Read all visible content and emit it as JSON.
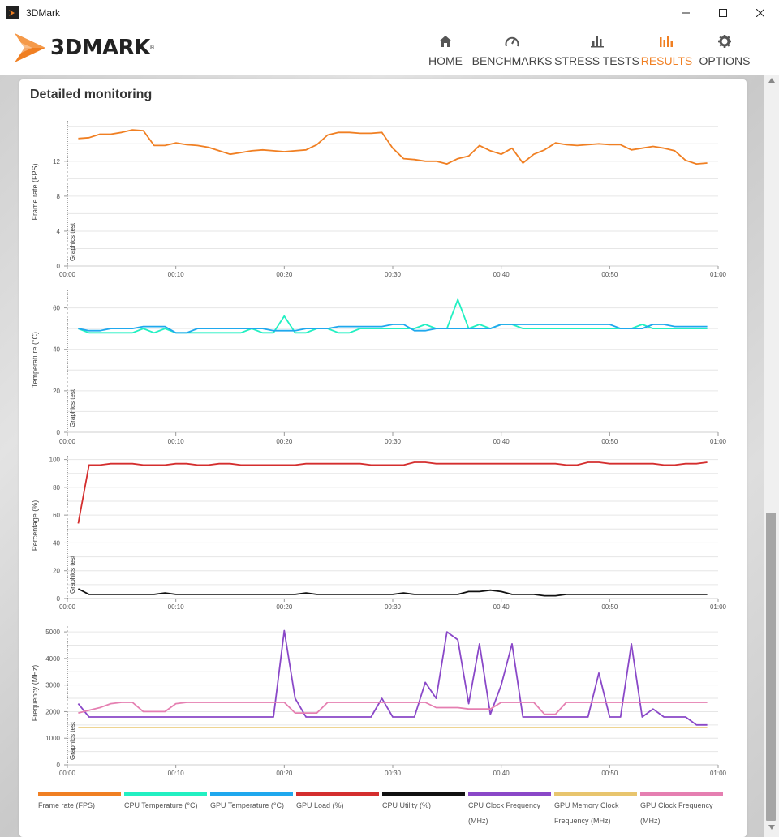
{
  "window": {
    "title": "3DMark"
  },
  "logo": {
    "text": "3DMARK",
    "reg": "®"
  },
  "nav": [
    {
      "id": "home",
      "label": "HOME",
      "icon": "home-icon",
      "active": false
    },
    {
      "id": "benchmarks",
      "label": "BENCHMARKS",
      "icon": "speedometer-icon",
      "active": false
    },
    {
      "id": "stress",
      "label": "STRESS TESTS",
      "icon": "bar-chart-icon",
      "active": false
    },
    {
      "id": "results",
      "label": "RESULTS",
      "icon": "results-chart-icon",
      "active": true
    },
    {
      "id": "options",
      "label": "OPTIONS",
      "icon": "gear-icon",
      "active": false
    }
  ],
  "colors": {
    "accent": "#f07f22"
  },
  "card": {
    "title": "Detailed monitoring"
  },
  "marker_label": "Graphics test",
  "chart_data": [
    {
      "type": "line",
      "ylabel": "Frame rate (FPS)",
      "ylim": [
        0,
        17
      ],
      "yticks": [
        0,
        4,
        8,
        12
      ],
      "ygrid": [
        2,
        4,
        6,
        8,
        10,
        12,
        14,
        16
      ],
      "xlim": [
        0,
        60
      ],
      "xticks": [
        "00:00",
        "00:10",
        "00:20",
        "00:30",
        "00:40",
        "00:50",
        "01:00"
      ],
      "series": [
        {
          "name": "Frame rate (FPS)",
          "color": "#f07f22",
          "x": [
            1,
            2,
            3,
            4,
            5,
            6,
            7,
            8,
            9,
            10,
            11,
            12,
            13,
            14,
            15,
            16,
            17,
            18,
            19,
            20,
            21,
            22,
            23,
            24,
            25,
            26,
            27,
            28,
            29,
            30,
            31,
            32,
            33,
            34,
            35,
            36,
            37,
            38,
            39,
            40,
            41,
            42,
            43,
            44,
            45,
            46,
            47,
            48,
            49,
            50,
            51,
            52,
            53,
            54,
            55,
            56,
            57,
            58,
            59
          ],
          "y": [
            14.6,
            14.7,
            15.1,
            15.1,
            15.3,
            15.6,
            15.5,
            13.8,
            13.8,
            14.1,
            13.9,
            13.8,
            13.6,
            13.2,
            12.8,
            13.0,
            13.2,
            13.3,
            13.2,
            13.1,
            13.2,
            13.3,
            13.9,
            15.0,
            15.3,
            15.3,
            15.2,
            15.2,
            15.3,
            13.5,
            12.3,
            12.2,
            12.0,
            12.0,
            11.7,
            12.3,
            12.6,
            13.8,
            13.2,
            12.8,
            13.5,
            11.8,
            12.8,
            13.3,
            14.1,
            13.9,
            13.8,
            13.9,
            14.0,
            13.9,
            13.9,
            13.3,
            13.5,
            13.7,
            13.5,
            13.2,
            12.1,
            11.7,
            11.8
          ]
        }
      ]
    },
    {
      "type": "line",
      "ylabel": "Temperature (°C)",
      "ylim": [
        0,
        70
      ],
      "yticks": [
        0,
        20,
        40,
        60
      ],
      "ygrid": [
        10,
        20,
        30,
        40,
        50,
        60
      ],
      "xlim": [
        0,
        60
      ],
      "xticks": [
        "00:00",
        "00:10",
        "00:20",
        "00:30",
        "00:40",
        "00:50",
        "01:00"
      ],
      "series": [
        {
          "name": "CPU Temperature (°C)",
          "color": "#22f0c2",
          "x": [
            1,
            2,
            3,
            4,
            5,
            6,
            7,
            8,
            9,
            10,
            11,
            12,
            13,
            14,
            15,
            16,
            17,
            18,
            19,
            20,
            21,
            22,
            23,
            24,
            25,
            26,
            27,
            28,
            29,
            30,
            31,
            32,
            33,
            34,
            35,
            36,
            37,
            38,
            39,
            40,
            41,
            42,
            43,
            44,
            45,
            46,
            47,
            48,
            49,
            50,
            51,
            52,
            53,
            54,
            55,
            56,
            57,
            58,
            59
          ],
          "y": [
            50,
            48,
            48,
            48,
            48,
            48,
            50,
            48,
            50,
            48,
            48,
            48,
            48,
            48,
            48,
            48,
            50,
            48,
            48,
            56,
            48,
            48,
            50,
            50,
            48,
            48,
            50,
            50,
            50,
            50,
            50,
            50,
            52,
            50,
            50,
            64,
            50,
            52,
            50,
            52,
            52,
            50,
            50,
            50,
            50,
            50,
            50,
            50,
            50,
            50,
            50,
            50,
            52,
            50,
            50,
            50,
            50,
            50,
            50
          ]
        },
        {
          "name": "GPU Temperature (°C)",
          "color": "#1fa8ee",
          "x": [
            1,
            2,
            3,
            4,
            5,
            6,
            7,
            8,
            9,
            10,
            11,
            12,
            13,
            14,
            15,
            16,
            17,
            18,
            19,
            20,
            21,
            22,
            23,
            24,
            25,
            26,
            27,
            28,
            29,
            30,
            31,
            32,
            33,
            34,
            35,
            36,
            37,
            38,
            39,
            40,
            41,
            42,
            43,
            44,
            45,
            46,
            47,
            48,
            49,
            50,
            51,
            52,
            53,
            54,
            55,
            56,
            57,
            58,
            59
          ],
          "y": [
            50,
            49,
            49,
            50,
            50,
            50,
            51,
            51,
            51,
            48,
            48,
            50,
            50,
            50,
            50,
            50,
            50,
            50,
            49,
            49,
            49,
            50,
            50,
            50,
            51,
            51,
            51,
            51,
            51,
            52,
            52,
            49,
            49,
            50,
            50,
            50,
            50,
            50,
            50,
            52,
            52,
            52,
            52,
            52,
            52,
            52,
            52,
            52,
            52,
            52,
            50,
            50,
            50,
            52,
            52,
            51,
            51,
            51,
            51
          ]
        }
      ]
    },
    {
      "type": "line",
      "ylabel": "Percentage (%)",
      "ylim": [
        0,
        105
      ],
      "yticks": [
        0,
        20,
        40,
        60,
        80,
        100
      ],
      "ygrid": [
        10,
        20,
        30,
        40,
        50,
        60,
        70,
        80,
        90,
        100
      ],
      "xlim": [
        0,
        60
      ],
      "xticks": [
        "00:00",
        "00:10",
        "00:20",
        "00:30",
        "00:40",
        "00:50",
        "01:00"
      ],
      "series": [
        {
          "name": "GPU Load (%)",
          "color": "#d42e2e",
          "x": [
            1,
            2,
            3,
            4,
            5,
            6,
            7,
            8,
            9,
            10,
            11,
            12,
            13,
            14,
            15,
            16,
            17,
            18,
            19,
            20,
            21,
            22,
            23,
            24,
            25,
            26,
            27,
            28,
            29,
            30,
            31,
            32,
            33,
            34,
            35,
            36,
            37,
            38,
            39,
            40,
            41,
            42,
            43,
            44,
            45,
            46,
            47,
            48,
            49,
            50,
            51,
            52,
            53,
            54,
            55,
            56,
            57,
            58,
            59
          ],
          "y": [
            54,
            96,
            96,
            97,
            97,
            97,
            96,
            96,
            96,
            97,
            97,
            96,
            96,
            97,
            97,
            96,
            96,
            96,
            96,
            96,
            96,
            97,
            97,
            97,
            97,
            97,
            97,
            96,
            96,
            96,
            96,
            98,
            98,
            97,
            97,
            97,
            97,
            97,
            97,
            97,
            97,
            97,
            97,
            97,
            97,
            96,
            96,
            98,
            98,
            97,
            97,
            97,
            97,
            97,
            96,
            96,
            97,
            97,
            98
          ],
          "y_end": 98
        },
        {
          "name": "CPU Utility (%)",
          "color": "#111111",
          "x": [
            1,
            2,
            3,
            4,
            5,
            6,
            7,
            8,
            9,
            10,
            11,
            12,
            13,
            14,
            15,
            16,
            17,
            18,
            19,
            20,
            21,
            22,
            23,
            24,
            25,
            26,
            27,
            28,
            29,
            30,
            31,
            32,
            33,
            34,
            35,
            36,
            37,
            38,
            39,
            40,
            41,
            42,
            43,
            44,
            45,
            46,
            47,
            48,
            49,
            50,
            51,
            52,
            53,
            54,
            55,
            56,
            57,
            58,
            59
          ],
          "y": [
            7,
            3,
            3,
            3,
            3,
            3,
            3,
            3,
            4,
            3,
            3,
            3,
            3,
            3,
            3,
            3,
            3,
            3,
            3,
            3,
            3,
            4,
            3,
            3,
            3,
            3,
            3,
            3,
            3,
            3,
            4,
            3,
            3,
            3,
            3,
            3,
            5,
            5,
            6,
            5,
            3,
            3,
            3,
            2,
            2,
            3,
            3,
            3,
            3,
            3,
            3,
            3,
            3,
            3,
            3,
            3,
            3,
            3,
            3
          ]
        }
      ]
    },
    {
      "type": "line",
      "ylabel": "Frequency (MHz)",
      "ylim": [
        0,
        5400
      ],
      "yticks": [
        0,
        1000,
        2000,
        3000,
        4000,
        5000
      ],
      "ygrid": [
        500,
        1000,
        1500,
        2000,
        2500,
        3000,
        3500,
        4000,
        4500,
        5000
      ],
      "xlim": [
        0,
        60
      ],
      "xticks": [
        "00:00",
        "00:10",
        "00:20",
        "00:30",
        "00:40",
        "00:50",
        "01:00"
      ],
      "series": [
        {
          "name": "CPU Clock Frequency (MHz)",
          "color": "#8a48c8",
          "x": [
            1,
            2,
            3,
            4,
            5,
            6,
            7,
            8,
            9,
            10,
            11,
            12,
            13,
            14,
            15,
            16,
            17,
            18,
            19,
            20,
            21,
            22,
            23,
            24,
            25,
            26,
            27,
            28,
            29,
            30,
            31,
            32,
            33,
            34,
            35,
            36,
            37,
            38,
            39,
            40,
            41,
            42,
            43,
            44,
            45,
            46,
            47,
            48,
            49,
            50,
            51,
            52,
            53,
            54,
            55,
            56,
            57,
            58,
            59
          ],
          "y": [
            2300,
            1800,
            1800,
            1800,
            1800,
            1800,
            1800,
            1800,
            1800,
            1800,
            1800,
            1800,
            1800,
            1800,
            1800,
            1800,
            1800,
            1800,
            1800,
            5050,
            2500,
            1800,
            1800,
            1800,
            1800,
            1800,
            1800,
            1800,
            2500,
            1800,
            1800,
            1800,
            3100,
            2500,
            5000,
            4700,
            2300,
            4550,
            1900,
            3000,
            4550,
            1800,
            1800,
            1800,
            1800,
            1800,
            1800,
            1800,
            3450,
            1800,
            1800,
            4550,
            1800,
            2100,
            1800,
            1800,
            1800,
            1500,
            1500
          ]
        },
        {
          "name": "GPU Memory Clock Frequency (MHz)",
          "color": "#e8c56e",
          "x": [
            1,
            59
          ],
          "y": [
            1400,
            1400
          ]
        },
        {
          "name": "GPU Clock Frequency (MHz)",
          "color": "#e57fb1",
          "x": [
            1,
            2,
            3,
            4,
            5,
            6,
            7,
            8,
            9,
            10,
            11,
            12,
            13,
            14,
            15,
            16,
            17,
            18,
            19,
            20,
            21,
            22,
            23,
            24,
            25,
            26,
            27,
            28,
            29,
            30,
            31,
            32,
            33,
            34,
            35,
            36,
            37,
            38,
            39,
            40,
            41,
            42,
            43,
            44,
            45,
            46,
            47,
            48,
            49,
            50,
            51,
            52,
            53,
            54,
            55,
            56,
            57,
            58,
            59
          ],
          "y": [
            1950,
            2050,
            2150,
            2300,
            2350,
            2350,
            2000,
            2000,
            2000,
            2300,
            2350,
            2350,
            2350,
            2350,
            2350,
            2350,
            2350,
            2350,
            2350,
            2350,
            1950,
            1950,
            1950,
            2350,
            2350,
            2350,
            2350,
            2350,
            2350,
            2350,
            2350,
            2350,
            2350,
            2150,
            2150,
            2150,
            2100,
            2100,
            2100,
            2350,
            2350,
            2350,
            2350,
            1900,
            1900,
            2350,
            2350,
            2350,
            2350,
            2350,
            2350,
            2350,
            2350,
            2350,
            2350,
            2350,
            2350,
            2350,
            2350
          ]
        }
      ]
    }
  ],
  "legend": [
    {
      "label": "Frame rate (FPS)",
      "color": "#f07f22"
    },
    {
      "label": "CPU Temperature (°C)",
      "color": "#22f0c2"
    },
    {
      "label": "GPU Temperature (°C)",
      "color": "#1fa8ee"
    },
    {
      "label": "GPU Load (%)",
      "color": "#d42e2e"
    },
    {
      "label": "CPU Utility (%)",
      "color": "#111111"
    },
    {
      "label": "CPU Clock Frequency (MHz)",
      "color": "#8a48c8"
    },
    {
      "label": "GPU Memory Clock Frequency (MHz)",
      "color": "#e8c56e"
    },
    {
      "label": "GPU Clock Frequency (MHz)",
      "color": "#e57fb1"
    }
  ]
}
